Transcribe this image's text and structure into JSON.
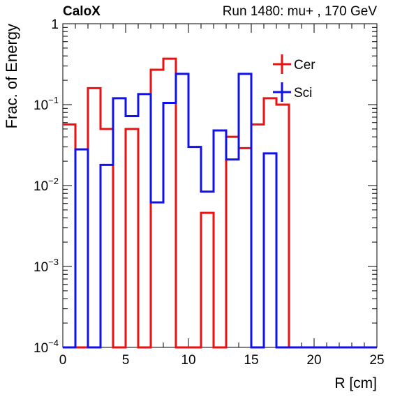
{
  "header": {
    "experiment_label": "CaloX",
    "run_label": "Run 1480: mu+ , 170 GeV"
  },
  "chart_data": {
    "type": "line",
    "subtype": "step-histogram",
    "xlabel": "R [cm]",
    "ylabel": "Frac. of Energy",
    "xlim": [
      0,
      25
    ],
    "ylim": [
      0.0001,
      1
    ],
    "y_scale": "log",
    "grid": false,
    "legend_position": "top-right",
    "x_ticks": [
      0,
      5,
      10,
      15,
      20,
      25
    ],
    "y_ticks": [
      {
        "value": 0.0001,
        "base": "10",
        "exp": "−4"
      },
      {
        "value": 0.001,
        "base": "10",
        "exp": "−3"
      },
      {
        "value": 0.01,
        "base": "10",
        "exp": "−2"
      },
      {
        "value": 0.1,
        "base": "10",
        "exp": "−1"
      },
      {
        "value": 1,
        "base": "1",
        "exp": ""
      }
    ],
    "bin_edges": [
      0,
      1,
      2,
      3,
      4,
      5,
      6,
      7,
      8,
      9,
      10,
      11,
      12,
      13,
      14,
      15,
      16,
      17,
      18,
      19,
      20,
      21,
      22,
      23,
      24,
      25
    ],
    "series": [
      {
        "name": "Cer",
        "color": "#ee1111",
        "values": [
          0.057,
          0.0001,
          0.16,
          0.05,
          0.0001,
          0.05,
          0.0001,
          0.27,
          0.37,
          0.0001,
          0.0001,
          0.0046,
          0.0001,
          0.04,
          0.029,
          0.057,
          0.12,
          0.1,
          0.0001,
          0.0001,
          0.0001,
          0.0001,
          0.0001,
          0.0001,
          0.0001
        ]
      },
      {
        "name": "Sci",
        "color": "#1111ee",
        "values": [
          0.0001,
          0.028,
          0.0001,
          0.018,
          0.12,
          0.072,
          0.135,
          0.0062,
          0.105,
          0.24,
          0.03,
          0.0084,
          0.048,
          0.021,
          0.24,
          0.0001,
          0.025,
          0.0001,
          0.0001,
          0.0001,
          0.0001,
          0.0001,
          0.0001,
          0.0001,
          0.0001
        ]
      }
    ]
  }
}
